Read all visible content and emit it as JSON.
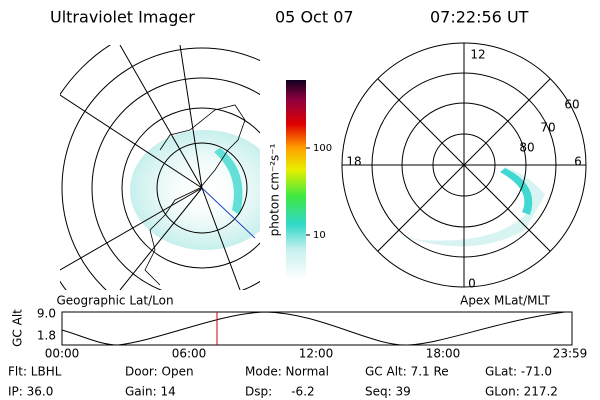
{
  "header": {
    "title": "Ultraviolet Imager",
    "date": "05 Oct 07",
    "time": "07:22:56 UT"
  },
  "left_map": {
    "label": "Geographic Lat/Lon"
  },
  "colorbar": {
    "unit_label": "photon cm⁻²s⁻¹",
    "ticks": [
      "100",
      "10"
    ]
  },
  "polar": {
    "label": "Apex MLat/MLT",
    "mlt_labels": [
      "12",
      "18",
      "6",
      "0"
    ],
    "lat_labels": [
      "60",
      "70",
      "80"
    ]
  },
  "altitude_plot": {
    "ylabel": "GC Alt",
    "yticks": [
      "9.0",
      "1.8"
    ],
    "xticks": [
      "00:00",
      "06:00",
      "12:00",
      "18:00",
      "23:59"
    ]
  },
  "info": {
    "rows": [
      [
        "Flt: LBHL",
        "Door: Open",
        "Mode: Normal",
        "GC Alt: 7.1 Re",
        "GLat: -71.0"
      ],
      [
        "IP: 36.0",
        "Gain: 14",
        "Dsp:     -6.2",
        "Seq: 39",
        "GLon: 217.2"
      ]
    ]
  }
}
